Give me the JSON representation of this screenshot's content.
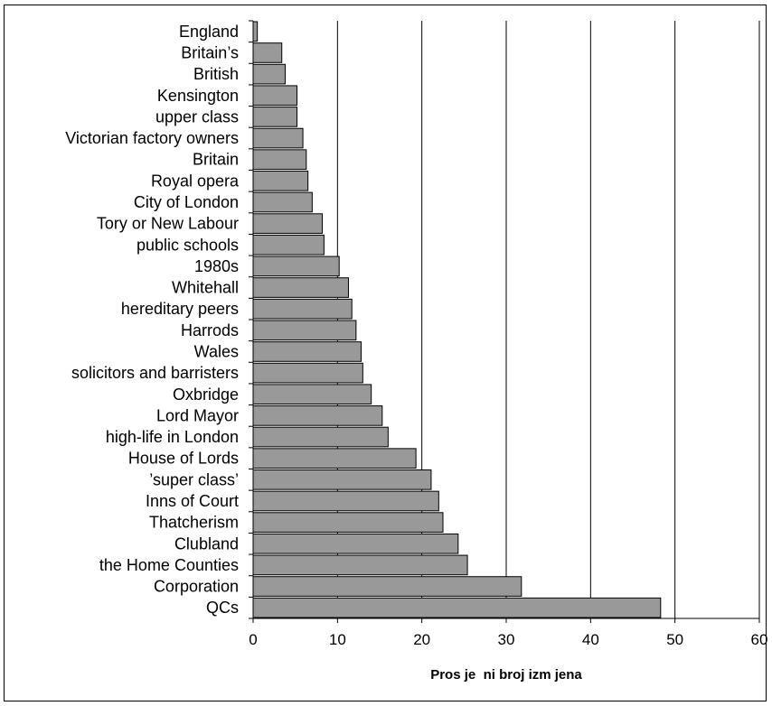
{
  "chart_data": {
    "type": "bar",
    "orientation": "horizontal",
    "categories": [
      "England",
      "Britain’s",
      "British",
      "Kensington",
      "upper class",
      "Victorian factory owners",
      "Britain",
      "Royal opera",
      "City of London",
      "Tory or New Labour",
      "public schools",
      "1980s",
      "Whitehall",
      "hereditary peers",
      "Harrods",
      "Wales",
      "solicitors and barristers",
      "Oxbridge",
      "Lord Mayor",
      "high-life in London",
      "House of Lords",
      "’super class’",
      "Inns of Court",
      "Thatcherism",
      "Clubland",
      "the Home Counties",
      "Corporation",
      "QCs"
    ],
    "values": [
      0.5,
      3.4,
      3.8,
      5.2,
      5.2,
      5.9,
      6.3,
      6.5,
      7.0,
      8.2,
      8.4,
      10.2,
      11.3,
      11.7,
      12.2,
      12.8,
      13.0,
      14.0,
      15.3,
      16.0,
      19.3,
      21.1,
      22.0,
      22.5,
      24.3,
      25.4,
      31.8,
      48.3
    ],
    "xlabel": "Pros je  ni broj izm jena",
    "ylabel": "",
    "xlim": [
      0,
      60
    ],
    "xticks": [
      0,
      10,
      20,
      30,
      40,
      50,
      60
    ],
    "grid": "vertical",
    "bar_color": "#999999",
    "bar_edge_color": "#000000"
  }
}
